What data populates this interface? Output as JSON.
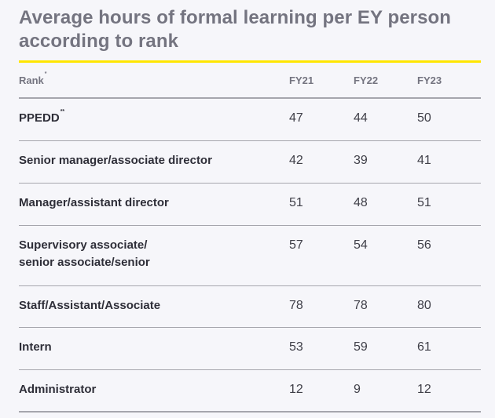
{
  "title": "Average hours of formal learning per EY person according to rank",
  "header": {
    "rank": "Rank",
    "rank_mark": "*",
    "fy21": "FY21",
    "fy22": "FY22",
    "fy23": "FY23"
  },
  "rows": [
    {
      "rank": "PPEDD",
      "mark": "**",
      "fy21": "47",
      "fy22": "44",
      "fy23": "50"
    },
    {
      "rank": "Senior manager/associate director",
      "fy21": "42",
      "fy22": "39",
      "fy23": "41"
    },
    {
      "rank": "Manager/assistant director",
      "fy21": "51",
      "fy22": "48",
      "fy23": "51"
    },
    {
      "rank_line1": "Supervisory associate/",
      "rank_line2": "senior associate/senior",
      "fy21": "57",
      "fy22": "54",
      "fy23": "56"
    },
    {
      "rank": "Staff/Assistant/Associate",
      "fy21": "78",
      "fy22": "78",
      "fy23": "80"
    },
    {
      "rank": "Intern",
      "fy21": "53",
      "fy22": "59",
      "fy23": "61"
    },
    {
      "rank": "Administrator",
      "fy21": "12",
      "fy22": "9",
      "fy23": "12"
    }
  ],
  "colors": {
    "accent_rule": "#ffe600",
    "title": "#747480",
    "text": "#2e2e38",
    "divider": "#a6a6ad",
    "background": "#f6f6fa"
  }
}
